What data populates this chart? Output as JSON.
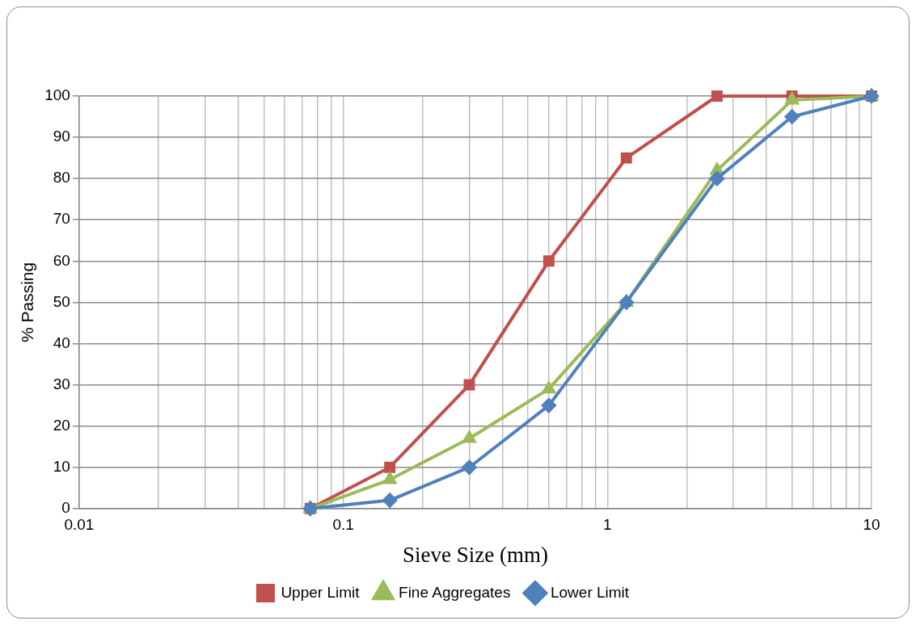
{
  "chart_data": {
    "type": "line",
    "xlabel": "Sieve Size (mm)",
    "ylabel": "% Passing",
    "x": [
      0.075,
      0.15,
      0.3,
      0.6,
      1.18,
      2.6,
      5,
      10
    ],
    "series": [
      {
        "name": "Upper Limit",
        "color": "#c0504d",
        "marker": "square",
        "values": [
          0,
          10,
          30,
          60,
          85,
          100,
          100,
          100
        ]
      },
      {
        "name": "Fine Aggregates",
        "color": "#9bbb59",
        "marker": "triangle",
        "values": [
          0,
          7,
          17,
          29,
          50,
          82,
          99,
          100
        ]
      },
      {
        "name": "Lower Limit",
        "color": "#4f81bd",
        "marker": "diamond",
        "values": [
          0,
          2,
          10,
          25,
          50,
          80,
          95,
          100
        ]
      }
    ],
    "log": "x",
    "xlim": [
      0.01,
      10
    ],
    "ylim": [
      0,
      100
    ],
    "xticks": [
      0.01,
      {
        "value": 0.02,
        "label": null
      },
      {
        "value": 0.03,
        "label": null
      },
      {
        "value": 0.04,
        "label": null
      },
      {
        "value": 0.05,
        "label": null
      },
      {
        "value": 0.06,
        "label": null
      },
      {
        "value": 0.07,
        "label": null
      },
      {
        "value": 0.08,
        "label": null
      },
      {
        "value": 0.09,
        "label": null
      },
      0.1,
      {
        "value": 0.2,
        "label": null
      },
      {
        "value": 0.3,
        "label": null
      },
      {
        "value": 0.4,
        "label": null
      },
      {
        "value": 0.5,
        "label": null
      },
      {
        "value": 0.6,
        "label": null
      },
      {
        "value": 0.7,
        "label": null
      },
      {
        "value": 0.8,
        "label": null
      },
      {
        "value": 0.9,
        "label": null
      },
      1,
      {
        "value": 2,
        "label": null
      },
      {
        "value": 3,
        "label": null
      },
      {
        "value": 4,
        "label": null
      },
      {
        "value": 5,
        "label": null
      },
      {
        "value": 6,
        "label": null
      },
      {
        "value": 7,
        "label": null
      },
      {
        "value": 8,
        "label": null
      },
      {
        "value": 9,
        "label": null
      },
      10
    ],
    "yticks": [
      0,
      10,
      20,
      30,
      40,
      50,
      60,
      70,
      80,
      90,
      100
    ],
    "grid": true,
    "legend": "bottom",
    "line_style": "solid"
  }
}
